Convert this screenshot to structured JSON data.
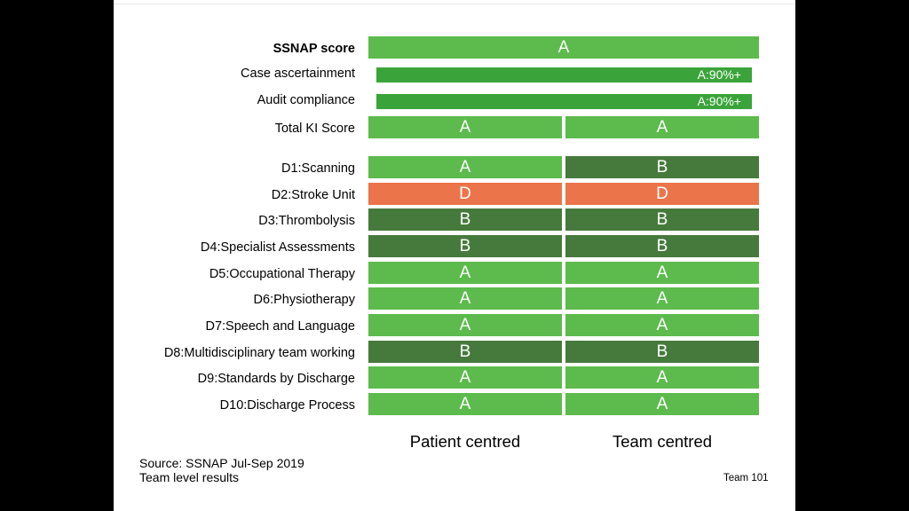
{
  "colors": {
    "A": "#5cbb4c",
    "A_thin": "#3aa43a",
    "B": "#467a3c",
    "D": "#ec744a"
  },
  "chart_data": {
    "type": "table",
    "columns": [
      "Patient centred",
      "Team centred"
    ],
    "summary_rows": [
      {
        "label": "SSNAP score",
        "bold": true,
        "span": true,
        "value": "A"
      },
      {
        "label": "Case ascertainment",
        "span": true,
        "thin": true,
        "value": "A:90%+"
      },
      {
        "label": "Audit compliance",
        "span": true,
        "thin": true,
        "value": "A:90%+"
      },
      {
        "label": "Total KI Score",
        "values": [
          "A",
          "A"
        ]
      }
    ],
    "domain_rows": [
      {
        "label": "D1:Scanning",
        "values": [
          "A",
          "B"
        ]
      },
      {
        "label": "D2:Stroke Unit",
        "values": [
          "D",
          "D"
        ]
      },
      {
        "label": "D3:Thrombolysis",
        "values": [
          "B",
          "B"
        ]
      },
      {
        "label": "D4:Specialist Assessments",
        "values": [
          "B",
          "B"
        ]
      },
      {
        "label": "D5:Occupational Therapy",
        "values": [
          "A",
          "A"
        ]
      },
      {
        "label": "D6:Physiotherapy",
        "values": [
          "A",
          "A"
        ]
      },
      {
        "label": "D7:Speech and Language",
        "values": [
          "A",
          "A"
        ]
      },
      {
        "label": "D8:Multidisciplinary team working",
        "values": [
          "B",
          "B"
        ]
      },
      {
        "label": "D9:Standards by Discharge",
        "values": [
          "A",
          "A"
        ]
      },
      {
        "label": "D10:Discharge Process",
        "values": [
          "A",
          "A"
        ]
      }
    ]
  },
  "footer": {
    "source_line1": "Source: SSNAP Jul-Sep 2019",
    "source_line2": "Team level results",
    "team": "Team 101"
  }
}
